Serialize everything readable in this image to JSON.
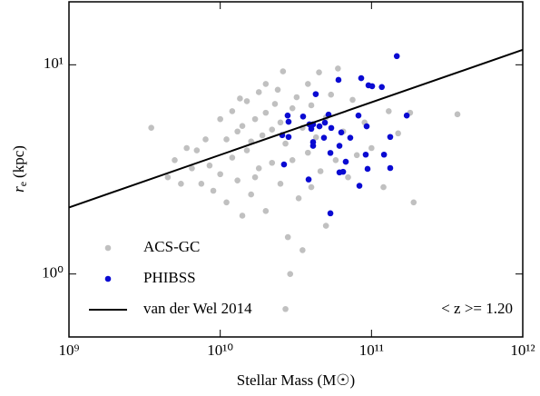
{
  "chart_data": {
    "type": "scatter",
    "xlabel": "Stellar Mass (M☉)",
    "ylabel": {
      "symbol": "r",
      "subscript": "e",
      "unit": "(kpc)"
    },
    "annotation": "< z >= 1.20",
    "xlog": true,
    "ylog": true,
    "xlim": [
      1000000000.0,
      1000000000000.0
    ],
    "ylim": [
      0.5,
      20
    ],
    "xticks": [
      {
        "value": 1000000000.0,
        "label": "10⁹"
      },
      {
        "value": 10000000000.0,
        "label": "10¹⁰"
      },
      {
        "value": 100000000000.0,
        "label": "10¹¹"
      },
      {
        "value": 1000000000000.0,
        "label": "10¹²"
      }
    ],
    "yticks": [
      {
        "value": 1,
        "label": "10⁰"
      },
      {
        "value": 10,
        "label": "10¹"
      }
    ],
    "legend": "lower left",
    "series": [
      {
        "name": "ACS-GC",
        "type": "scatter",
        "color": "#c0c0c0",
        "x": [
          4500000000.0,
          5000000000.0,
          5500000000.0,
          6000000000.0,
          6500000000.0,
          7000000000.0,
          7500000000.0,
          8000000000.0,
          8500000000.0,
          9000000000.0,
          10000000000.0,
          10000000000.0,
          11000000000.0,
          11000000000.0,
          12000000000.0,
          12000000000.0,
          13000000000.0,
          13000000000.0,
          14000000000.0,
          14000000000.0,
          15000000000.0,
          15000000000.0,
          16000000000.0,
          16000000000.0,
          17000000000.0,
          18000000000.0,
          18000000000.0,
          19000000000.0,
          20000000000.0,
          20000000000.0,
          20000000000.0,
          22000000000.0,
          22000000000.0,
          23000000000.0,
          24000000000.0,
          25000000000.0,
          25000000000.0,
          26000000000.0,
          27000000000.0,
          28000000000.0,
          29000000000.0,
          30000000000.0,
          30000000000.0,
          32000000000.0,
          33000000000.0,
          35000000000.0,
          35000000000.0,
          38000000000.0,
          38000000000.0,
          40000000000.0,
          40000000000.0,
          43000000000.0,
          45000000000.0,
          46000000000.0,
          50000000000.0,
          50000000000.0,
          54000000000.0,
          58000000000.0,
          60000000000.0,
          65000000000.0,
          70000000000.0,
          75000000000.0,
          80000000000.0,
          90000000000.0,
          100000000000.0,
          120000000000.0,
          130000000000.0,
          150000000000.0,
          180000000000.0,
          190000000000.0,
          370000000000.0,
          27000000000.0,
          17000000000.0,
          3500000000.0,
          13500000000.0
        ],
        "values": [
          2.9,
          3.5,
          2.7,
          4.0,
          3.2,
          3.9,
          2.7,
          4.4,
          3.3,
          2.5,
          5.5,
          3.0,
          4.4,
          2.2,
          6.0,
          3.6,
          4.8,
          2.8,
          5.1,
          1.9,
          6.7,
          3.9,
          4.3,
          2.4,
          5.5,
          7.4,
          3.2,
          4.6,
          8.1,
          5.9,
          2.0,
          4.9,
          3.4,
          6.5,
          7.6,
          5.3,
          2.7,
          9.3,
          4.2,
          1.5,
          1.0,
          6.2,
          3.5,
          7.0,
          2.3,
          5.0,
          1.3,
          8.1,
          3.8,
          6.4,
          2.6,
          4.5,
          9.2,
          3.1,
          5.6,
          1.7,
          7.2,
          3.5,
          9.6,
          4.8,
          2.9,
          6.8,
          3.7,
          5.3,
          4.0,
          2.6,
          6.0,
          4.7,
          5.9,
          2.2,
          5.8,
          0.68,
          2.9,
          5.0,
          6.9
        ]
      },
      {
        "name": "PHIBSS",
        "type": "scatter",
        "color": "#0a0ad2",
        "x": [
          147000000000.0,
          42800000000.0,
          85500000000.0,
          95500000000.0,
          101000000000.0,
          117000000000.0,
          60500000000.0,
          27900000000.0,
          28300000000.0,
          35300000000.0,
          52000000000.0,
          82000000000.0,
          38900000000.0,
          41100000000.0,
          45300000000.0,
          49200000000.0,
          54200000000.0,
          92900000000.0,
          40000000000.0,
          63100000000.0,
          25700000000.0,
          28300000000.0,
          48500000000.0,
          41100000000.0,
          72400000000.0,
          133000000000.0,
          41100000000.0,
          61400000000.0,
          53500000000.0,
          91600000000.0,
          67600000000.0,
          64900000000.0,
          121000000000.0,
          133000000000.0,
          26400000000.0,
          94200000000.0,
          38400000000.0,
          61400000000.0,
          83200000000.0,
          53500000000.0,
          171000000000.0
        ],
        "values": [
          11.0,
          7.24,
          8.63,
          7.98,
          7.9,
          7.83,
          8.47,
          5.72,
          5.34,
          5.66,
          5.78,
          5.72,
          5.19,
          5.19,
          5.08,
          5.29,
          4.99,
          5.08,
          4.94,
          4.75,
          4.61,
          4.52,
          4.48,
          4.27,
          4.48,
          4.52,
          4.1,
          4.1,
          3.79,
          3.72,
          3.44,
          3.08,
          3.72,
          3.21,
          3.34,
          3.18,
          2.83,
          3.06,
          2.64,
          1.95,
          5.72
        ]
      },
      {
        "name": "van der Wel 2014",
        "type": "line",
        "color": "#000000",
        "x": [
          1000000000.0,
          1000000000000.0
        ],
        "values": [
          2.08,
          11.8
        ]
      }
    ]
  }
}
